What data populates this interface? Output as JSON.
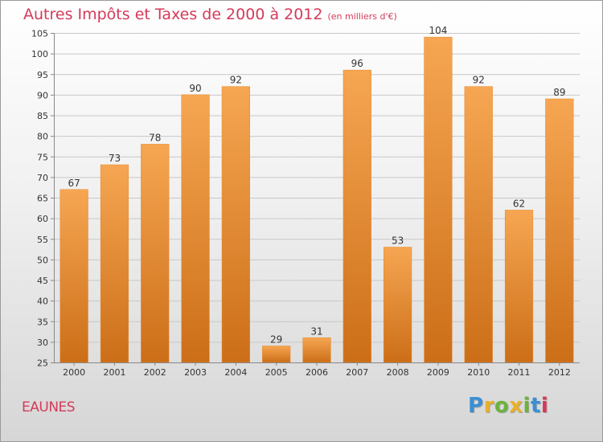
{
  "header": {
    "title": "Autres Impôts et Taxes de 2000 à 2012",
    "subtitle": "(en milliers d'€)"
  },
  "footer": {
    "town": "EAUNES",
    "brand_letters": [
      "P",
      "r",
      "o",
      "x",
      "i",
      "t",
      "i"
    ]
  },
  "colors": {
    "title": "#d43a5a",
    "bar_light": "#f6a652",
    "bar_dark": "#cc6e18",
    "brand": [
      "#3a8fd4",
      "#e8b02c",
      "#6cb33e",
      "#e8b02c",
      "#6cb33e",
      "#3a8fd4",
      "#d43a5a"
    ]
  },
  "chart_data": {
    "type": "bar",
    "categories": [
      "2000",
      "2001",
      "2002",
      "2003",
      "2004",
      "2005",
      "2006",
      "2007",
      "2008",
      "2009",
      "2010",
      "2011",
      "2012"
    ],
    "values": [
      67,
      73,
      78,
      90,
      92,
      29,
      31,
      96,
      53,
      104,
      92,
      62,
      89
    ],
    "data_labels": [
      "67",
      "73",
      "78",
      "90",
      "92",
      "29",
      "31",
      "96",
      "53",
      "104",
      "92",
      "62",
      "89"
    ],
    "y_ticks": [
      25,
      30,
      35,
      40,
      45,
      50,
      55,
      60,
      65,
      70,
      75,
      80,
      85,
      90,
      95,
      100,
      105
    ],
    "ylim": [
      25,
      105
    ],
    "grid": true,
    "title": "Autres Impôts et Taxes de 2000 à 2012",
    "xlabel": "",
    "ylabel": ""
  }
}
